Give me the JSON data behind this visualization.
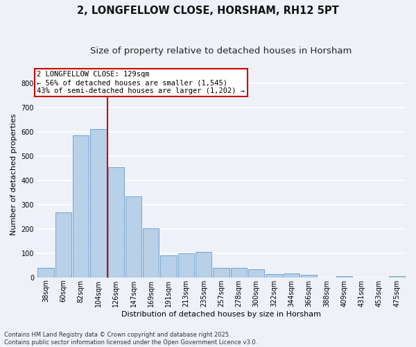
{
  "title": "2, LONGFELLOW CLOSE, HORSHAM, RH12 5PT",
  "subtitle": "Size of property relative to detached houses in Horsham",
  "xlabel": "Distribution of detached houses by size in Horsham",
  "ylabel": "Number of detached properties",
  "categories": [
    "38sqm",
    "60sqm",
    "82sqm",
    "104sqm",
    "126sqm",
    "147sqm",
    "169sqm",
    "191sqm",
    "213sqm",
    "235sqm",
    "257sqm",
    "278sqm",
    "300sqm",
    "322sqm",
    "344sqm",
    "366sqm",
    "388sqm",
    "409sqm",
    "431sqm",
    "453sqm",
    "475sqm"
  ],
  "values": [
    38,
    268,
    585,
    610,
    455,
    335,
    202,
    92,
    100,
    105,
    38,
    38,
    33,
    12,
    15,
    10,
    0,
    5,
    0,
    0,
    5
  ],
  "bar_color": "#b8d0e8",
  "bar_edge_color": "#6699cc",
  "vline_color": "#cc0000",
  "annotation_text": "2 LONGFELLOW CLOSE: 129sqm\n← 56% of detached houses are smaller (1,545)\n43% of semi-detached houses are larger (1,202) →",
  "annotation_box_edge": "#cc0000",
  "ylim": [
    0,
    850
  ],
  "yticks": [
    0,
    100,
    200,
    300,
    400,
    500,
    600,
    700,
    800
  ],
  "footnote": "Contains HM Land Registry data © Crown copyright and database right 2025.\nContains public sector information licensed under the Open Government Licence v3.0.",
  "bg_color": "#eef2f8",
  "grid_color": "#ffffff",
  "title_fontsize": 10.5,
  "subtitle_fontsize": 9.5,
  "ylabel_fontsize": 8,
  "xlabel_fontsize": 8,
  "tick_fontsize": 7,
  "footnote_fontsize": 6,
  "annot_fontsize": 7.5
}
